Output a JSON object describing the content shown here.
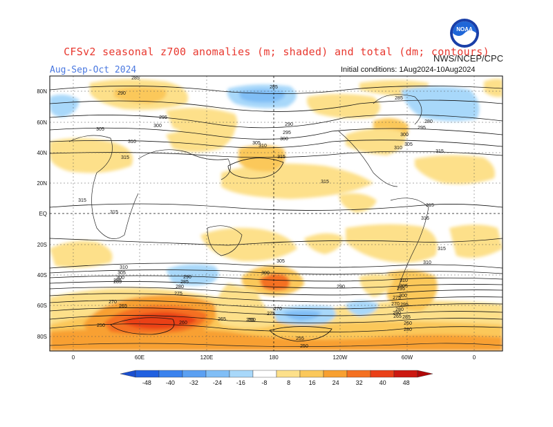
{
  "title": "CFSv2 seasonal z700 anomalies (m; shaded) and total (dm; contours)",
  "season": "Aug-Sep-Oct 2024",
  "agency": "NWS/NCEP/CPC",
  "initial_conditions": "Initial conditions: 1Aug2024-10Aug2024",
  "logo_text": "NOAA",
  "map": {
    "lat_labels": [
      "80N",
      "60N",
      "40N",
      "20N",
      "EQ",
      "20S",
      "40S",
      "60S",
      "80S"
    ],
    "lon_labels": [
      "0",
      "60E",
      "120E",
      "180",
      "120W",
      "60W",
      "0"
    ],
    "contour_labels": [
      {
        "text": "285"
      },
      {
        "text": "290"
      },
      {
        "text": "295"
      },
      {
        "text": "300"
      },
      {
        "text": "305"
      },
      {
        "text": "310"
      },
      {
        "text": "315"
      },
      {
        "text": "285"
      },
      {
        "text": "290"
      },
      {
        "text": "295"
      },
      {
        "text": "300"
      },
      {
        "text": "305"
      },
      {
        "text": "310"
      },
      {
        "text": "315"
      },
      {
        "text": "285"
      },
      {
        "text": "280"
      },
      {
        "text": "295"
      },
      {
        "text": "300"
      },
      {
        "text": "305"
      },
      {
        "text": "310"
      },
      {
        "text": "315"
      },
      {
        "text": "315"
      },
      {
        "text": "315"
      },
      {
        "text": "315"
      },
      {
        "text": "310"
      },
      {
        "text": "305"
      },
      {
        "text": "300"
      },
      {
        "text": "295"
      },
      {
        "text": "290"
      },
      {
        "text": "285"
      },
      {
        "text": "280"
      },
      {
        "text": "275"
      },
      {
        "text": "270"
      },
      {
        "text": "265"
      },
      {
        "text": "260"
      },
      {
        "text": "255"
      },
      {
        "text": "250"
      },
      {
        "text": "260"
      },
      {
        "text": "265"
      },
      {
        "text": "270"
      },
      {
        "text": "275"
      },
      {
        "text": "280"
      },
      {
        "text": "285"
      },
      {
        "text": "290"
      },
      {
        "text": "295"
      },
      {
        "text": "300"
      },
      {
        "text": "305"
      },
      {
        "text": "310"
      },
      {
        "text": "315"
      },
      {
        "text": "316"
      },
      {
        "text": "315"
      },
      {
        "text": "310"
      },
      {
        "text": "305"
      },
      {
        "text": "300"
      },
      {
        "text": "295"
      },
      {
        "text": "290"
      },
      {
        "text": "285"
      },
      {
        "text": "280"
      },
      {
        "text": "275"
      },
      {
        "text": "270"
      },
      {
        "text": "265"
      },
      {
        "text": "260"
      },
      {
        "text": "255"
      },
      {
        "text": "250"
      }
    ]
  },
  "colorbar": {
    "labels": [
      "-48",
      "-40",
      "-32",
      "-24",
      "-16",
      "-8",
      "8",
      "16",
      "24",
      "32",
      "40",
      "48"
    ],
    "colors": [
      "#2060e0",
      "#3a82ee",
      "#5ba0f2",
      "#80bef6",
      "#a8d8fa",
      "#ffffff",
      "#fde08a",
      "#fbc85a",
      "#f8a030",
      "#f47020",
      "#ea4018",
      "#cc1810"
    ]
  },
  "colors": {
    "title": "#e8382f",
    "season": "#4a78e0",
    "positive_light": "#fde08a",
    "positive_mid": "#fbc85a",
    "positive_strong": "#f8a030",
    "positive_deep": "#f47020",
    "negative_light": "#a8d8fa",
    "negative_mid": "#80bef6"
  }
}
